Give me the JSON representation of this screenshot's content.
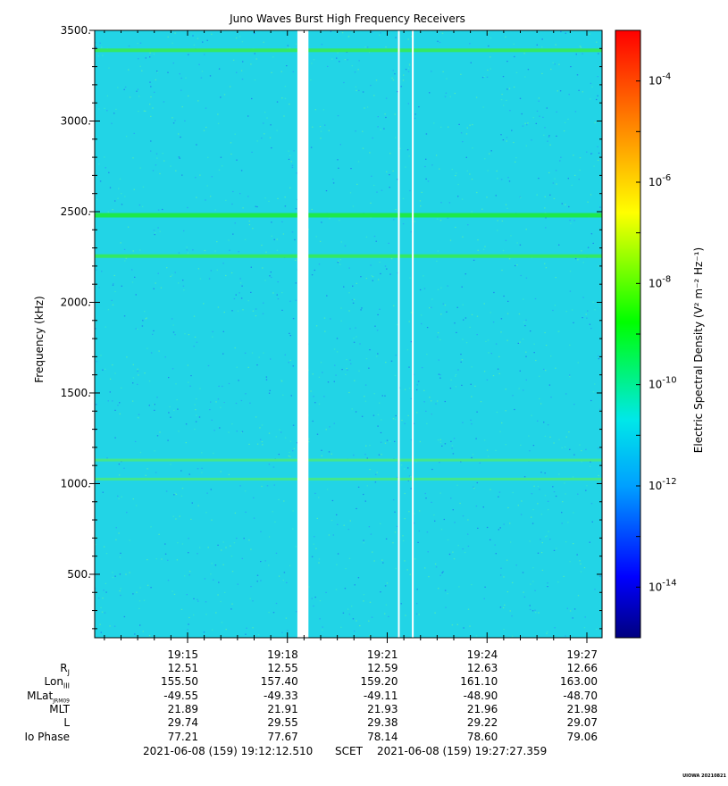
{
  "chart_data": {
    "type": "heatmap",
    "title": "Juno Waves Burst High Frequency Receivers",
    "ylabel": "Frequency (kHz)",
    "ylim": [
      150,
      3500
    ],
    "yticks": [
      "3500.",
      "3000.",
      "2500.",
      "2000.",
      "1500.",
      "1000.",
      "500."
    ],
    "ytick_values": [
      3500,
      3000,
      2500,
      2000,
      1500,
      1000,
      500
    ],
    "x_time_range": [
      "19:12:12.510",
      "19:27:27.359"
    ],
    "xticks": [
      "19:15",
      "19:18",
      "19:21",
      "19:24",
      "19:27"
    ],
    "colorbar": {
      "label": "Electric Spectral Density (V² m⁻² Hz⁻¹)",
      "scale": "log",
      "range": [
        1e-15,
        0.001
      ],
      "tick_labels": [
        "10-4",
        "10-6",
        "10-8",
        "10-10",
        "10-12",
        "10-14"
      ],
      "tick_exponents": [
        -4,
        -6,
        -8,
        -10,
        -12,
        -14
      ],
      "colors": [
        "#00007f",
        "#0000ff",
        "#00a0ff",
        "#00e8e8",
        "#00ff00",
        "#ffff00",
        "#ff8000",
        "#ff0000"
      ]
    },
    "background_level": 1e-12,
    "emission_lines_kHz": [
      {
        "freq": 3390,
        "level": "1e-11"
      },
      {
        "freq": 2480,
        "level": "1e-10"
      },
      {
        "freq": 2255,
        "level": "1e-11"
      },
      {
        "freq": 1130,
        "level": "3e-12"
      },
      {
        "freq": 1025,
        "level": "5e-12"
      }
    ],
    "data_gaps": [
      "19:18:18 - 19:18:38",
      "19:21:21",
      "19:21:46"
    ]
  },
  "ephemeris": {
    "rows": [
      {
        "label": "R",
        "sub": "J",
        "values": [
          "12.51",
          "12.55",
          "12.59",
          "12.63",
          "12.66"
        ]
      },
      {
        "label": "Lon",
        "sub": "III",
        "values": [
          "155.50",
          "157.40",
          "159.20",
          "161.10",
          "163.00"
        ]
      },
      {
        "label": "MLat",
        "sub": "JRM09",
        "values": [
          "-49.55",
          "-49.33",
          "-49.11",
          "-48.90",
          "-48.70"
        ]
      },
      {
        "label": "MLT",
        "sub": "",
        "values": [
          "21.89",
          "21.91",
          "21.93",
          "21.96",
          "21.98"
        ]
      },
      {
        "label": "L",
        "sub": "",
        "values": [
          "29.74",
          "29.55",
          "29.38",
          "29.22",
          "29.07"
        ]
      },
      {
        "label": "Io Phase",
        "sub": "",
        "values": [
          "77.21",
          "77.67",
          "78.14",
          "78.60",
          "79.06"
        ]
      }
    ]
  },
  "footer": {
    "start": "2021-06-08 (159) 19:12:12.510",
    "middle": "SCET",
    "end": "2021-06-08 (159) 19:27:27.359"
  },
  "credit": "UIOWA 20210821"
}
